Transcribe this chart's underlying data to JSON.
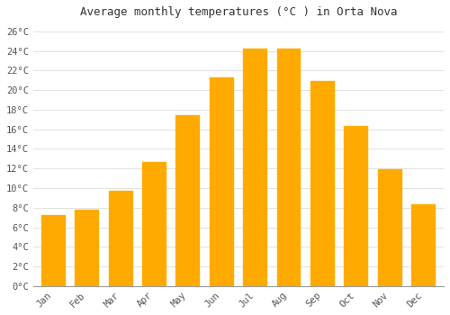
{
  "months": [
    "Jan",
    "Feb",
    "Mar",
    "Apr",
    "May",
    "Jun",
    "Jul",
    "Aug",
    "Sep",
    "Oct",
    "Nov",
    "Dec"
  ],
  "temperatures": [
    7.2,
    7.8,
    9.7,
    12.7,
    17.4,
    21.3,
    24.2,
    24.2,
    20.9,
    16.3,
    11.9,
    8.3
  ],
  "bar_color": "#FFAA00",
  "bar_edge_color": "#FFB800",
  "title": "Average monthly temperatures (°C ) in Orta Nova",
  "ylim": [
    0,
    27
  ],
  "ytick_step": 2,
  "background_color": "#FFFFFF",
  "grid_color": "#DDDDDD",
  "title_fontsize": 9,
  "tick_fontsize": 7.5,
  "font_family": "monospace",
  "bar_width": 0.72
}
